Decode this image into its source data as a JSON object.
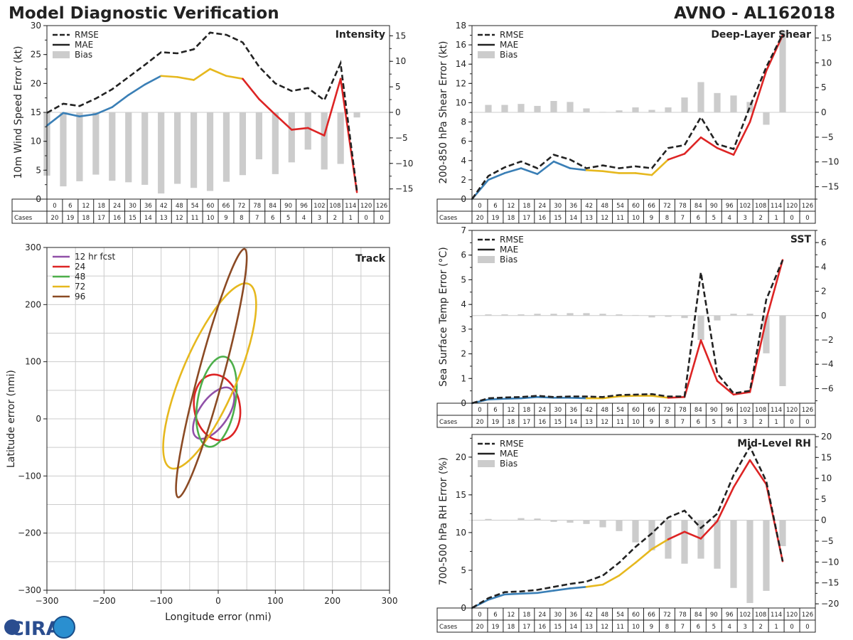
{
  "header": {
    "left_title": "Model Diagnostic Verification",
    "right_title": "AVNO - AL162018"
  },
  "colors": {
    "rmse": "#222222",
    "bias": "#cccccc",
    "blue": "#3a7fb6",
    "yellow": "#e6b81e",
    "red": "#dd2424",
    "purple": "#9050a8",
    "green": "#4daf4a",
    "brown": "#8b4a24",
    "grid": "#cccccc"
  },
  "cases": {
    "label": "Cases",
    "hours": [
      "0",
      "6",
      "12",
      "18",
      "24",
      "30",
      "36",
      "42",
      "48",
      "54",
      "60",
      "66",
      "72",
      "78",
      "84",
      "90",
      "96",
      "102",
      "108",
      "114",
      "120",
      "126"
    ],
    "counts": [
      "20",
      "19",
      "18",
      "17",
      "16",
      "15",
      "14",
      "13",
      "12",
      "11",
      "10",
      "9",
      "8",
      "7",
      "6",
      "5",
      "4",
      "3",
      "2",
      "1",
      "0",
      "0"
    ]
  },
  "legend": {
    "rmse": "RMSE",
    "mae": "MAE",
    "bias": "Bias"
  },
  "logo": {
    "text": "CIRA"
  },
  "chart_data": [
    {
      "type": "line",
      "id": "intensity",
      "title": "Intensity",
      "ylabel": "10m Wind Speed Error (kt)",
      "xlabel": "",
      "ylim": [
        0,
        30
      ],
      "y2lim": [
        -17,
        17
      ],
      "yticks": [
        0,
        5,
        10,
        15,
        20,
        25,
        30
      ],
      "y2ticks": [
        -15,
        -10,
        -5,
        0,
        5,
        10,
        15
      ],
      "x": [
        0,
        6,
        12,
        18,
        24,
        30,
        36,
        42,
        48,
        54,
        60,
        66,
        72,
        78,
        84,
        90,
        96,
        102,
        108,
        114
      ],
      "rmse": [
        14.9,
        16.5,
        16.1,
        17.4,
        19.0,
        21.1,
        23.2,
        25.4,
        25.2,
        25.9,
        28.8,
        28.4,
        27.1,
        22.9,
        20.0,
        18.7,
        19.2,
        17.1,
        23.5,
        1.4
      ],
      "mae": [
        12.7,
        14.9,
        14.3,
        14.7,
        15.9,
        18.0,
        19.8,
        21.3,
        21.1,
        20.6,
        22.5,
        21.3,
        20.8,
        17.3,
        14.6,
        12.0,
        12.3,
        11.0,
        20.8,
        1.2
      ],
      "mae_colors": [
        "blue",
        "blue",
        "blue",
        "blue",
        "blue",
        "blue",
        "blue",
        "blue",
        "yellow",
        "yellow",
        "yellow",
        "yellow",
        "yellow",
        "red",
        "red",
        "red",
        "red",
        "red",
        "red",
        "red"
      ],
      "bias": [
        -12.4,
        -14.5,
        -13.5,
        -12.2,
        -13.4,
        -13.7,
        -14.2,
        -15.9,
        -14.0,
        -14.8,
        -15.4,
        -13.6,
        -12.3,
        -9.2,
        -12.1,
        -9.8,
        -7.3,
        -11.2,
        -10.1,
        -1.0
      ]
    },
    {
      "type": "line",
      "id": "shear",
      "title": "Deep-Layer Shear",
      "ylabel": "200-850 hPa Shear Error (kt)",
      "xlabel": "",
      "ylim": [
        0,
        18
      ],
      "y2lim": [
        -17.5,
        17.5
      ],
      "yticks": [
        0,
        2,
        4,
        6,
        8,
        10,
        12,
        14,
        16,
        18
      ],
      "y2ticks": [
        -15,
        -10,
        -5,
        0,
        5,
        10,
        15
      ],
      "x": [
        0,
        6,
        12,
        18,
        24,
        30,
        36,
        42,
        48,
        54,
        60,
        66,
        72,
        78,
        84,
        90,
        96,
        102,
        108,
        114
      ],
      "rmse": [
        0,
        2.4,
        3.3,
        3.9,
        3.2,
        4.6,
        4.1,
        3.2,
        3.5,
        3.2,
        3.4,
        3.2,
        5.3,
        5.6,
        8.5,
        5.7,
        5.2,
        9.6,
        13.7,
        17.1
      ],
      "mae": [
        0,
        2.0,
        2.7,
        3.2,
        2.6,
        3.9,
        3.2,
        3.0,
        2.9,
        2.7,
        2.7,
        2.5,
        4.1,
        4.7,
        6.4,
        5.3,
        4.6,
        8.0,
        13.3,
        17.0
      ],
      "mae_colors": [
        "blue",
        "blue",
        "blue",
        "blue",
        "blue",
        "blue",
        "blue",
        "blue",
        "yellow",
        "yellow",
        "yellow",
        "yellow",
        "yellow",
        "red",
        "red",
        "red",
        "red",
        "red",
        "red",
        "red"
      ],
      "bias": [
        0,
        1.5,
        1.5,
        1.7,
        1.3,
        2.3,
        2.1,
        0.8,
        0.1,
        0.4,
        1.0,
        0.5,
        1.0,
        3.0,
        6.1,
        3.9,
        3.4,
        2.1,
        -2.5,
        16.5
      ]
    },
    {
      "type": "line",
      "id": "sst",
      "title": "SST",
      "ylabel": "Sea Surface Temp Error (°C)",
      "xlabel": "",
      "ylim": [
        0,
        7
      ],
      "y2lim": [
        -7.2,
        7
      ],
      "yticks": [
        0,
        1,
        2,
        3,
        4,
        5,
        6,
        7
      ],
      "y2ticks": [
        -6,
        -4,
        -2,
        0,
        2,
        4,
        6
      ],
      "x": [
        0,
        6,
        12,
        18,
        24,
        30,
        36,
        42,
        48,
        54,
        60,
        66,
        72,
        78,
        84,
        90,
        96,
        102,
        108,
        114
      ],
      "rmse": [
        0,
        0.2,
        0.23,
        0.25,
        0.3,
        0.25,
        0.27,
        0.27,
        0.25,
        0.33,
        0.35,
        0.37,
        0.27,
        0.27,
        5.3,
        1.2,
        0.4,
        0.5,
        4.2,
        5.8
      ],
      "mae": [
        0,
        0.15,
        0.18,
        0.2,
        0.25,
        0.22,
        0.22,
        0.2,
        0.2,
        0.28,
        0.3,
        0.3,
        0.22,
        0.25,
        2.55,
        0.9,
        0.35,
        0.45,
        3.4,
        5.8
      ],
      "mae_colors": [
        "blue",
        "blue",
        "blue",
        "blue",
        "blue",
        "blue",
        "blue",
        "blue",
        "yellow",
        "yellow",
        "yellow",
        "yellow",
        "yellow",
        "red",
        "red",
        "red",
        "red",
        "red",
        "red",
        "red"
      ],
      "bias": [
        0,
        0.1,
        0.1,
        0.1,
        0.15,
        0.15,
        0.2,
        0.2,
        0.15,
        0.1,
        0.05,
        -0.15,
        -0.1,
        -0.2,
        -2.0,
        -0.4,
        0.15,
        0.15,
        -3.1,
        -5.8
      ]
    },
    {
      "type": "line",
      "id": "rh",
      "title": "Mid-Level RH",
      "ylabel": "700-500 hPa RH Error (%)",
      "xlabel": "",
      "ylim": [
        0,
        23
      ],
      "y2lim": [
        -21,
        20.5
      ],
      "yticks": [
        0,
        5,
        10,
        15,
        20
      ],
      "y2ticks": [
        -20,
        -15,
        -10,
        -5,
        0,
        5,
        10,
        15,
        20
      ],
      "x": [
        0,
        6,
        12,
        18,
        24,
        30,
        36,
        42,
        48,
        54,
        60,
        66,
        72,
        78,
        84,
        90,
        96,
        102,
        108,
        114
      ],
      "rmse": [
        0,
        1.3,
        2.1,
        2.2,
        2.4,
        2.8,
        3.2,
        3.5,
        4.3,
        6.0,
        8.1,
        9.9,
        12.0,
        12.9,
        10.6,
        12.5,
        17.6,
        21.4,
        16.8,
        6.2
      ],
      "mae": [
        0,
        1.1,
        1.8,
        1.9,
        2.0,
        2.3,
        2.6,
        2.8,
        3.1,
        4.3,
        6.0,
        7.8,
        9.1,
        10.1,
        9.2,
        11.5,
        16.0,
        19.6,
        16.4,
        6.2
      ],
      "mae_colors": [
        "blue",
        "blue",
        "blue",
        "blue",
        "blue",
        "blue",
        "blue",
        "blue",
        "yellow",
        "yellow",
        "yellow",
        "yellow",
        "yellow",
        "red",
        "red",
        "red",
        "red",
        "red",
        "red",
        "red"
      ],
      "bias": [
        0,
        0.3,
        0.1,
        0.5,
        0.4,
        -0.4,
        -0.6,
        -0.9,
        -1.7,
        -2.6,
        -5.3,
        -7.2,
        -9.2,
        -10.4,
        -9.2,
        -11.6,
        -16.2,
        -19.8,
        -16.9,
        -6.2
      ]
    },
    {
      "type": "scatter",
      "id": "track",
      "title": "Track",
      "xlabel": "Longitude error (nmi)",
      "ylabel": "Latitude error (nmi)",
      "xlim": [
        -300,
        300
      ],
      "ylim": [
        -300,
        300
      ],
      "xticks": [
        -300,
        -200,
        -100,
        0,
        100,
        200,
        300
      ],
      "yticks": [
        -300,
        -200,
        -100,
        0,
        100,
        200,
        300
      ],
      "ellipses": [
        {
          "name": "12 hr fcst",
          "color": "purple",
          "cx": -8,
          "cy": 10,
          "rx": 52,
          "ry": 25,
          "angle": 55
        },
        {
          "name": "24",
          "color": "red",
          "cx": -2,
          "cy": 20,
          "rx": 58,
          "ry": 40,
          "angle": 100
        },
        {
          "name": "48",
          "color": "green",
          "cx": -3,
          "cy": 30,
          "rx": 80,
          "ry": 33,
          "angle": 80
        },
        {
          "name": "72",
          "color": "yellow",
          "cx": -15,
          "cy": 75,
          "rx": 175,
          "ry": 48,
          "angle": 67
        },
        {
          "name": "96",
          "color": "brown",
          "cx": -12,
          "cy": 80,
          "rx": 225,
          "ry": 22,
          "angle": 75
        }
      ]
    }
  ]
}
